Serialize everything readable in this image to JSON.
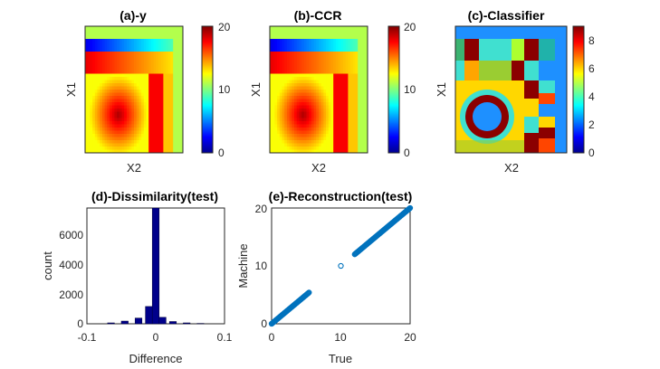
{
  "chart_data": [
    {
      "id": "a",
      "type": "heatmap",
      "title": "(a)-y",
      "xlabel": "X2",
      "ylabel": "X1",
      "colorbar": {
        "min": 0,
        "max": 20,
        "ticks": [
          "0",
          "10",
          "20"
        ]
      }
    },
    {
      "id": "b",
      "type": "heatmap",
      "title": "(b)-CCR",
      "xlabel": "X2",
      "ylabel": "X1",
      "colorbar": {
        "min": 0,
        "max": 20,
        "ticks": [
          "0",
          "10",
          "20"
        ]
      }
    },
    {
      "id": "c",
      "type": "heatmap",
      "title": "(c)-Classifier",
      "xlabel": "X2",
      "ylabel": "X1",
      "colorbar": {
        "min": 0,
        "max": 9,
        "ticks": [
          "0",
          "2",
          "4",
          "6",
          "8"
        ]
      }
    },
    {
      "id": "d",
      "type": "bar",
      "title": "(d)-Dissimilarity(test)",
      "xlabel": "Difference",
      "ylabel": "count",
      "xlim": [
        -0.1,
        0.1
      ],
      "ylim": [
        0,
        7700
      ],
      "xticks": [
        "-0.1",
        "0",
        "0.1"
      ],
      "yticks": [
        "0",
        "2000",
        "4000",
        "6000"
      ],
      "bins": [
        {
          "center": -0.065,
          "value": 60
        },
        {
          "center": -0.045,
          "value": 180
        },
        {
          "center": -0.025,
          "value": 380
        },
        {
          "center": -0.01,
          "value": 1150
        },
        {
          "center": 0.0,
          "value": 7700
        },
        {
          "center": 0.01,
          "value": 430
        },
        {
          "center": 0.025,
          "value": 150
        },
        {
          "center": 0.045,
          "value": 60
        },
        {
          "center": 0.065,
          "value": 25
        }
      ],
      "bar_color": "#00008B"
    },
    {
      "id": "e",
      "type": "scatter",
      "title": "(e)-Reconstruction(test)",
      "xlabel": "True",
      "ylabel": "Machine",
      "xlim": [
        0,
        20
      ],
      "ylim": [
        0,
        20
      ],
      "xticks": [
        "0",
        "10",
        "20"
      ],
      "yticks": [
        "0",
        "10",
        "20"
      ],
      "segments": [
        {
          "from": 0,
          "to": 5.4
        },
        {
          "from": 12,
          "to": 20
        }
      ],
      "isolated_points": [
        {
          "x": 10,
          "y": 10
        }
      ],
      "marker_color": "#0072BD"
    }
  ]
}
